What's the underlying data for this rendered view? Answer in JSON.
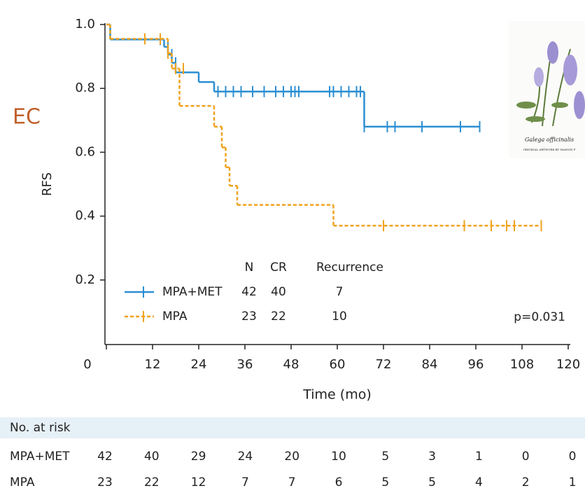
{
  "chart_data": {
    "type": "km",
    "side_label": "EC",
    "y_label": "RFS",
    "x_label": "Time (mo)",
    "xlim": [
      0,
      120
    ],
    "ylim": [
      0,
      1
    ],
    "xticks": [
      0,
      12,
      24,
      36,
      48,
      60,
      72,
      84,
      96,
      108,
      120
    ],
    "yticks": [
      0.2,
      0.4,
      0.6,
      0.8,
      {
        "value": 1,
        "label": "1.0"
      }
    ],
    "legend_headers": [
      "N",
      "CR",
      "Recurrence"
    ],
    "annotation": "p=0.031",
    "series": [
      {
        "name": "MPA+MET",
        "color": "#2b8fd2",
        "dashed": false,
        "stats": [
          42,
          40,
          7
        ],
        "x": [
          0,
          1,
          15,
          16,
          17,
          18,
          24,
          28,
          67
        ],
        "values": [
          1,
          0.953,
          0.93,
          0.906,
          0.88,
          0.85,
          0.82,
          0.79,
          0.68
        ],
        "censored": {
          "x": [
            14,
            16,
            17,
            18,
            29,
            31,
            33,
            35,
            38,
            41,
            44,
            46,
            48,
            49,
            50,
            58,
            59,
            61,
            63,
            65,
            66,
            67,
            73,
            75,
            82,
            92,
            97
          ],
          "values": [
            0.953,
            0.93,
            0.906,
            0.88,
            0.79,
            0.79,
            0.79,
            0.79,
            0.79,
            0.79,
            0.79,
            0.79,
            0.79,
            0.79,
            0.79,
            0.79,
            0.79,
            0.79,
            0.79,
            0.79,
            0.79,
            0.68,
            0.68,
            0.68,
            0.68,
            0.68,
            0.68
          ]
        }
      },
      {
        "name": "MPA",
        "color": "#f0a21e",
        "dashed": true,
        "stats": [
          23,
          22,
          10
        ],
        "x": [
          0,
          1,
          16,
          17,
          19,
          28,
          30,
          31,
          32,
          34,
          59
        ],
        "values": [
          1,
          0.955,
          0.91,
          0.862,
          0.745,
          0.68,
          0.615,
          0.553,
          0.495,
          0.435,
          0.37
        ],
        "censored": {
          "x": [
            10,
            14,
            16,
            18,
            20,
            72,
            93,
            100,
            104,
            106,
            113
          ],
          "values": [
            0.955,
            0.955,
            0.91,
            0.862,
            0.862,
            0.37,
            0.37,
            0.37,
            0.37,
            0.37,
            0.37
          ]
        }
      }
    ],
    "risk_table": {
      "title": "No. at risk",
      "rows": [
        {
          "name": "MPA+MET",
          "values": [
            42,
            40,
            29,
            24,
            20,
            10,
            5,
            3,
            1,
            0,
            0
          ]
        },
        {
          "name": "MPA",
          "values": [
            23,
            22,
            12,
            7,
            7,
            6,
            5,
            5,
            4,
            2,
            1
          ]
        }
      ]
    }
  },
  "inset": {
    "caption": "Galega officinalis",
    "credit": "ORIGINAL ARTWORK BY MAISON P"
  }
}
